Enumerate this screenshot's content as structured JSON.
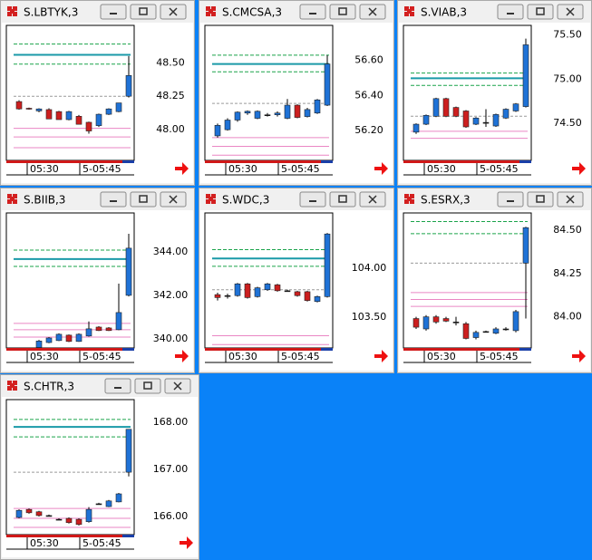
{
  "windows": [
    {
      "title": "S.LBTYK,3",
      "xlabels": [
        "05:30",
        "5-05:45"
      ],
      "ylim": [
        47.77,
        48.78
      ],
      "yticks": [
        {
          "value": 48.5,
          "label": "48.50"
        },
        {
          "value": 48.25,
          "label": "48.25"
        },
        {
          "value": 48.0,
          "label": "48.00"
        }
      ],
      "levels": [
        {
          "value": 48.64,
          "kind": "green"
        },
        {
          "value": 48.56,
          "kind": "teal"
        },
        {
          "value": 48.49,
          "kind": "green"
        },
        {
          "value": 48.25,
          "kind": "gray"
        },
        {
          "value": 48.01,
          "kind": "pink"
        },
        {
          "value": 47.945,
          "kind": "pink"
        },
        {
          "value": 47.865,
          "kind": "pink"
        }
      ],
      "candles": [
        [
          48.21,
          48.22,
          48.15,
          48.155
        ],
        [
          48.16,
          48.165,
          48.15,
          48.155
        ],
        [
          48.14,
          48.16,
          48.13,
          48.155
        ],
        [
          48.15,
          48.16,
          48.08,
          48.08
        ],
        [
          48.135,
          48.14,
          48.075,
          48.075
        ],
        [
          48.075,
          48.14,
          48.07,
          48.135
        ],
        [
          48.1,
          48.11,
          48.04,
          48.04
        ],
        [
          48.055,
          48.06,
          47.97,
          47.99
        ],
        [
          48.03,
          48.12,
          48.02,
          48.115
        ],
        [
          48.115,
          48.16,
          48.11,
          48.155
        ],
        [
          48.135,
          48.2,
          48.13,
          48.2
        ],
        [
          48.25,
          48.55,
          48.24,
          48.405
        ]
      ]
    },
    {
      "title": "S.CMCSA,3",
      "xlabels": [
        "05:30",
        "5-05:45"
      ],
      "ylim": [
        56.03,
        56.8
      ],
      "yticks": [
        {
          "value": 56.6,
          "label": "56.60"
        },
        {
          "value": 56.4,
          "label": "56.40"
        },
        {
          "value": 56.2,
          "label": "56.20"
        }
      ],
      "levels": [
        {
          "value": 56.63,
          "kind": "green"
        },
        {
          "value": 56.58,
          "kind": "teal"
        },
        {
          "value": 56.535,
          "kind": "green"
        },
        {
          "value": 56.355,
          "kind": "gray"
        },
        {
          "value": 56.16,
          "kind": "pink"
        },
        {
          "value": 56.11,
          "kind": "pink"
        },
        {
          "value": 56.06,
          "kind": "pink"
        }
      ],
      "candles": [
        [
          56.17,
          56.24,
          56.16,
          56.23
        ],
        [
          56.205,
          56.27,
          56.2,
          56.26
        ],
        [
          56.26,
          56.31,
          56.25,
          56.305
        ],
        [
          56.3,
          56.315,
          56.29,
          56.31
        ],
        [
          56.27,
          56.315,
          56.265,
          56.31
        ],
        [
          56.29,
          56.3,
          56.28,
          56.29
        ],
        [
          56.29,
          56.31,
          56.28,
          56.3
        ],
        [
          56.27,
          56.38,
          56.265,
          56.345
        ],
        [
          56.345,
          56.35,
          56.27,
          56.275
        ],
        [
          56.28,
          56.33,
          56.275,
          56.32
        ],
        [
          56.3,
          56.38,
          56.295,
          56.375
        ],
        [
          56.345,
          56.63,
          56.34,
          56.58
        ]
      ]
    },
    {
      "title": "S.VIAB,3",
      "xlabels": [
        "05:30",
        "5-05:45"
      ],
      "ylim": [
        74.08,
        75.61
      ],
      "yticks": [
        {
          "value": 75.5,
          "label": "75.50"
        },
        {
          "value": 75.0,
          "label": "75.00"
        },
        {
          "value": 74.5,
          "label": "74.50"
        }
      ],
      "levels": [
        {
          "value": 75.07,
          "kind": "green"
        },
        {
          "value": 75.01,
          "kind": "teal"
        },
        {
          "value": 74.93,
          "kind": "green"
        },
        {
          "value": 74.58,
          "kind": "gray"
        },
        {
          "value": 74.41,
          "kind": "pink"
        },
        {
          "value": 74.33,
          "kind": "pink"
        }
      ],
      "candles": [
        [
          74.4,
          74.5,
          74.38,
          74.49
        ],
        [
          74.49,
          74.6,
          74.48,
          74.59
        ],
        [
          74.58,
          74.79,
          74.57,
          74.78
        ],
        [
          74.78,
          74.79,
          74.57,
          74.58
        ],
        [
          74.68,
          74.69,
          74.57,
          74.58
        ],
        [
          74.64,
          74.65,
          74.45,
          74.46
        ],
        [
          74.49,
          74.57,
          74.48,
          74.56
        ],
        [
          74.51,
          74.66,
          74.46,
          74.51
        ],
        [
          74.47,
          74.61,
          74.46,
          74.6
        ],
        [
          74.56,
          74.67,
          74.55,
          74.66
        ],
        [
          74.64,
          74.73,
          74.63,
          74.72
        ],
        [
          74.69,
          75.46,
          74.68,
          75.39
        ]
      ]
    },
    {
      "title": "S.BIIB,3",
      "xlabels": [
        "05:30",
        "5-05:45"
      ],
      "ylim": [
        339.58,
        345.79
      ],
      "yticks": [
        {
          "value": 344,
          "label": "344.00"
        },
        {
          "value": 342,
          "label": "342.00"
        },
        {
          "value": 340,
          "label": "340.00"
        }
      ],
      "levels": [
        {
          "value": 344.08,
          "kind": "green"
        },
        {
          "value": 343.67,
          "kind": "teal"
        },
        {
          "value": 343.33,
          "kind": "green"
        },
        {
          "value": 340.71,
          "kind": "pink"
        },
        {
          "value": 340.42,
          "kind": "pink"
        },
        {
          "value": 340.08,
          "kind": "pink"
        }
      ],
      "candles": [
        [
          339.6,
          339.95,
          339.58,
          339.9
        ],
        [
          339.83,
          340.08,
          339.8,
          340.04
        ],
        [
          339.92,
          340.25,
          339.9,
          340.21
        ],
        [
          340.17,
          340.2,
          339.85,
          339.88
        ],
        [
          339.88,
          340.25,
          339.86,
          340.21
        ],
        [
          340.13,
          340.8,
          340.1,
          340.46
        ],
        [
          340.54,
          340.58,
          340.36,
          340.38
        ],
        [
          340.5,
          340.54,
          340.36,
          340.38
        ],
        [
          340.42,
          342.54,
          340.4,
          341.21
        ],
        [
          342.0,
          344.83,
          341.95,
          344.17
        ]
      ]
    },
    {
      "title": "S.WDC,3",
      "xlabels": [
        "05:30",
        "5-05:45"
      ],
      "ylim": [
        103.185,
        104.565
      ],
      "yticks": [
        {
          "value": 104,
          "label": "104.00"
        },
        {
          "value": 103.5,
          "label": "103.50"
        }
      ],
      "levels": [
        {
          "value": 104.19,
          "kind": "green"
        },
        {
          "value": 104.1,
          "kind": "teal"
        },
        {
          "value": 104.02,
          "kind": "green"
        },
        {
          "value": 103.78,
          "kind": "gray"
        },
        {
          "value": 103.31,
          "kind": "pink"
        },
        {
          "value": 103.22,
          "kind": "pink"
        }
      ],
      "candles": [
        [
          103.73,
          103.75,
          103.67,
          103.7
        ],
        [
          103.72,
          103.74,
          103.69,
          103.72
        ],
        [
          103.72,
          103.85,
          103.71,
          103.84
        ],
        [
          103.84,
          103.85,
          103.69,
          103.7
        ],
        [
          103.71,
          103.81,
          103.7,
          103.8
        ],
        [
          103.78,
          103.85,
          103.77,
          103.84
        ],
        [
          103.83,
          103.84,
          103.76,
          103.77
        ],
        [
          103.77,
          103.78,
          103.76,
          103.77
        ],
        [
          103.76,
          103.77,
          103.71,
          103.72
        ],
        [
          103.76,
          103.77,
          103.66,
          103.67
        ],
        [
          103.66,
          103.72,
          103.65,
          103.71
        ],
        [
          103.71,
          104.36,
          103.7,
          104.35
        ]
      ]
    },
    {
      "title": "S.ESRX,3",
      "xlabels": [
        "05:30",
        "5-05:45"
      ],
      "ylim": [
        83.82,
        84.6
      ],
      "yticks": [
        {
          "value": 84.5,
          "label": "84.50"
        },
        {
          "value": 84.25,
          "label": "84.25"
        },
        {
          "value": 84.0,
          "label": "84.00"
        }
      ],
      "levels": [
        {
          "value": 84.55,
          "kind": "green"
        },
        {
          "value": 84.48,
          "kind": "green"
        },
        {
          "value": 84.31,
          "kind": "gray"
        },
        {
          "value": 84.14,
          "kind": "pink"
        },
        {
          "value": 84.1,
          "kind": "pink"
        },
        {
          "value": 84.06,
          "kind": "pink"
        }
      ],
      "candles": [
        [
          83.99,
          84.0,
          83.93,
          83.94
        ],
        [
          83.93,
          84.01,
          83.92,
          84.0
        ],
        [
          84.0,
          84.01,
          83.96,
          83.97
        ],
        [
          83.99,
          84.0,
          83.97,
          83.975
        ],
        [
          83.97,
          84.0,
          83.95,
          83.97
        ],
        [
          83.96,
          83.97,
          83.87,
          83.875
        ],
        [
          83.88,
          83.92,
          83.87,
          83.91
        ],
        [
          83.915,
          83.92,
          83.91,
          83.915
        ],
        [
          83.905,
          83.94,
          83.9,
          83.93
        ],
        [
          83.93,
          83.94,
          83.92,
          83.93
        ],
        [
          83.92,
          84.04,
          83.91,
          84.03
        ],
        [
          84.31,
          84.52,
          83.99,
          84.515
        ]
      ]
    },
    {
      "title": "S.CHTR,3",
      "xlabels": [
        "05:30",
        "5-05:45"
      ],
      "ylim": [
        165.615,
        168.48
      ],
      "yticks": [
        {
          "value": 168,
          "label": "168.00"
        },
        {
          "value": 167,
          "label": "167.00"
        },
        {
          "value": 166,
          "label": "166.00"
        }
      ],
      "levels": [
        {
          "value": 168.06,
          "kind": "green"
        },
        {
          "value": 167.9,
          "kind": "teal"
        },
        {
          "value": 167.69,
          "kind": "green"
        },
        {
          "value": 166.94,
          "kind": "gray"
        },
        {
          "value": 166.17,
          "kind": "pink"
        },
        {
          "value": 165.96,
          "kind": "pink"
        },
        {
          "value": 165.77,
          "kind": "pink"
        }
      ],
      "candles": [
        [
          165.98,
          166.15,
          165.96,
          166.13
        ],
        [
          166.15,
          166.17,
          166.06,
          166.08
        ],
        [
          166.1,
          166.12,
          166.0,
          166.02
        ],
        [
          166.02,
          166.04,
          166.0,
          166.02
        ],
        [
          165.94,
          165.96,
          165.92,
          165.94
        ],
        [
          165.96,
          165.98,
          165.85,
          165.87
        ],
        [
          165.94,
          165.96,
          165.81,
          165.83
        ],
        [
          165.89,
          166.2,
          165.87,
          166.15
        ],
        [
          166.27,
          166.29,
          166.25,
          166.27
        ],
        [
          166.21,
          166.35,
          166.2,
          166.33
        ],
        [
          166.31,
          166.5,
          166.3,
          166.48
        ],
        [
          166.94,
          167.85,
          166.85,
          167.85
        ]
      ]
    }
  ]
}
